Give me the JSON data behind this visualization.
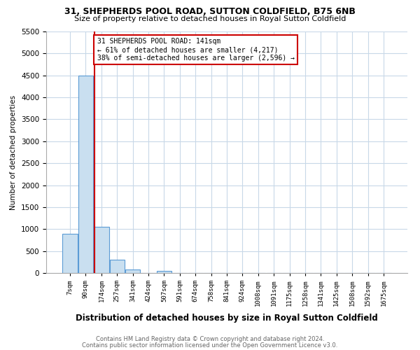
{
  "title1": "31, SHEPHERDS POOL ROAD, SUTTON COLDFIELD, B75 6NB",
  "title2": "Size of property relative to detached houses in Royal Sutton Coldfield",
  "xlabel": "Distribution of detached houses by size in Royal Sutton Coldfield",
  "ylabel": "Number of detached properties",
  "bin_labels": [
    "7sqm",
    "90sqm",
    "174sqm",
    "257sqm",
    "341sqm",
    "424sqm",
    "507sqm",
    "591sqm",
    "674sqm",
    "758sqm",
    "841sqm",
    "924sqm",
    "1008sqm",
    "1091sqm",
    "1175sqm",
    "1258sqm",
    "1341sqm",
    "1425sqm",
    "1508sqm",
    "1592sqm",
    "1675sqm"
  ],
  "bar_values": [
    900,
    4500,
    1050,
    300,
    80,
    0,
    50,
    0,
    0,
    0,
    0,
    0,
    0,
    0,
    0,
    0,
    0,
    0,
    0,
    0,
    0
  ],
  "bar_color": "#c9dff0",
  "bar_edge_color": "#5b9bd5",
  "property_line_x": 1.57,
  "property_line_color": "#cc0000",
  "annotation_title": "31 SHEPHERDS POOL ROAD: 141sqm",
  "annotation_line1": "← 61% of detached houses are smaller (4,217)",
  "annotation_line2": "38% of semi-detached houses are larger (2,596) →",
  "annotation_box_color": "#cc0000",
  "ylim": [
    0,
    5500
  ],
  "yticks": [
    0,
    500,
    1000,
    1500,
    2000,
    2500,
    3000,
    3500,
    4000,
    4500,
    5000,
    5500
  ],
  "footer1": "Contains HM Land Registry data © Crown copyright and database right 2024.",
  "footer2": "Contains public sector information licensed under the Open Government Licence v3.0.",
  "bg_color": "#ffffff",
  "grid_color": "#c8d8e8"
}
